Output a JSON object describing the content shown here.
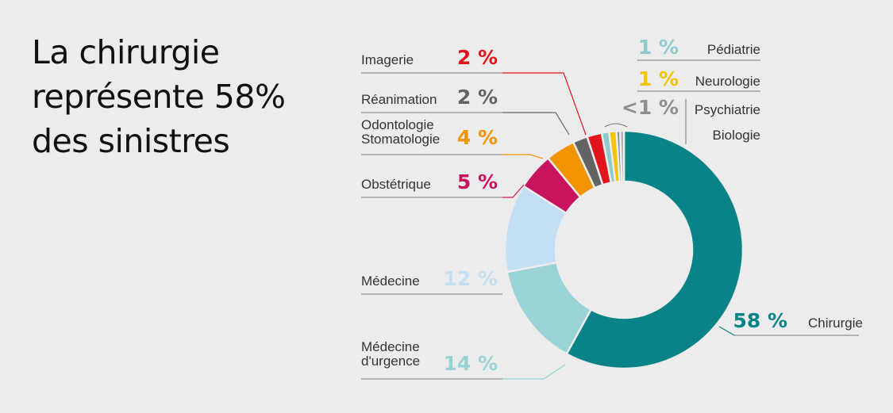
{
  "headline": {
    "line1": "La chirurgie",
    "line2": "représente 58%",
    "line3": "des sinistres"
  },
  "chart_data": {
    "type": "pie",
    "variant": "donut",
    "title": "La chirurgie représente 58% des sinistres",
    "slices": [
      {
        "label": "Chirurgie",
        "value": 58,
        "value_label": "58 %",
        "color": "#0a8388"
      },
      {
        "label": "Médecine d'urgence",
        "label_lines": [
          "Médecine",
          "d'urgence"
        ],
        "value": 14,
        "value_label": "14 %",
        "color": "#99d3d5"
      },
      {
        "label": "Médecine",
        "value": 12,
        "value_label": "12 %",
        "color": "#c3dff4"
      },
      {
        "label": "Obstétrique",
        "value": 5,
        "value_label": "5 %",
        "color": "#c8145f"
      },
      {
        "label": "Odontologie Stomatologie",
        "label_lines": [
          "Odontologie",
          "Stomatologie"
        ],
        "value": 4,
        "value_label": "4 %",
        "color": "#f29400"
      },
      {
        "label": "Réanimation",
        "value": 2,
        "value_label": "2 %",
        "color": "#636363"
      },
      {
        "label": "Imagerie",
        "value": 2,
        "value_label": "2 %",
        "color": "#e2141e"
      },
      {
        "label": "Pédiatrie",
        "value": 1,
        "value_label": "1 %",
        "color": "#8ccacc"
      },
      {
        "label": "Neurologie",
        "value": 1,
        "value_label": "1 %",
        "color": "#f5c400"
      },
      {
        "label": "Psychiatrie",
        "value": 0.5,
        "value_label": "<1 %",
        "color": "#8e8e8e"
      },
      {
        "label": "Biologie",
        "value": 0.5,
        "value_label": "",
        "color": "#a7a7a7"
      }
    ]
  }
}
